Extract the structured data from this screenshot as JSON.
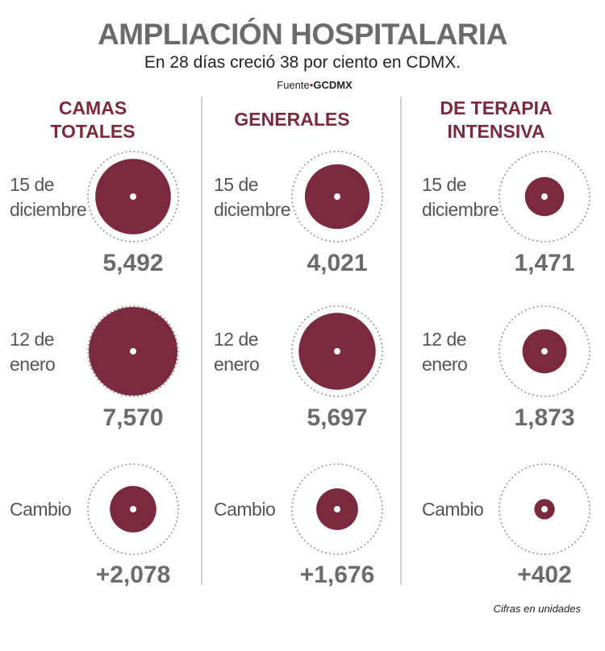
{
  "title": "AMPLIACIÓN HOSPITALARIA",
  "subtitle": "En 28 días creció 38 por ciento en CDMX.",
  "source": {
    "label": "Fuente",
    "name": "GCDMX"
  },
  "note": "Cifras en unidades",
  "colors": {
    "circle": "#7b2a3e",
    "text": "#6b6b6b",
    "dots": "#999999"
  },
  "chart_data": {
    "type": "proportional-circles",
    "columns": [
      {
        "title_line1": "CAMAS",
        "title_line2": "TOTALES"
      },
      {
        "title_line1": "GENERALES",
        "title_line2": ""
      },
      {
        "title_line1": "DE TERAPIA",
        "title_line2": "INTENSIVA"
      }
    ],
    "rows": [
      {
        "label_line1": "15 de",
        "label_line2": "diciembre"
      },
      {
        "label_line1": "12 de",
        "label_line2": "enero"
      },
      {
        "label_line1": "Cambio",
        "label_line2": ""
      }
    ],
    "values": [
      [
        "5,492",
        "4,021",
        "1,471"
      ],
      [
        "7,570",
        "5,697",
        "1,873"
      ],
      [
        "+2,078",
        "+1,676",
        "+402"
      ]
    ],
    "numeric": [
      [
        5492,
        4021,
        1471
      ],
      [
        7570,
        5697,
        1873
      ],
      [
        2078,
        1676,
        402
      ]
    ]
  }
}
